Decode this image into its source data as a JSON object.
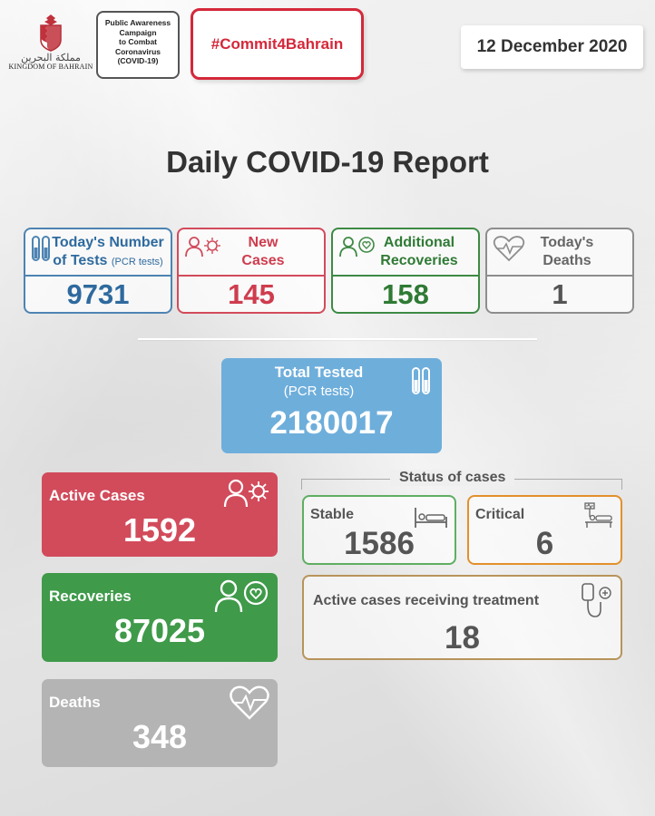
{
  "header": {
    "kingdom_ar": "مملكة البحرين",
    "kingdom_en": "KINGDOM OF BAHRAIN",
    "campaign_lines": [
      "Public Awareness",
      "Campaign",
      "to Combat",
      "Coronavirus",
      "(COVID-19)"
    ],
    "hashtag": "#Commit4Bahrain",
    "date": "12 December 2020"
  },
  "title": "Daily COVID-19 Report",
  "daily": {
    "tests": {
      "label_line1": "Today's Number",
      "label_line2": "of Tests",
      "label_small": "(PCR tests)",
      "value": "9731",
      "icon": "test-tubes-icon"
    },
    "new_cases": {
      "label_line1": "New",
      "label_line2": "Cases",
      "value": "145",
      "icon": "person-virus-icon"
    },
    "recoveries": {
      "label_line1": "Additional",
      "label_line2": "Recoveries",
      "value": "158",
      "icon": "person-heart-icon"
    },
    "deaths": {
      "label_line1": "Today's",
      "label_line2": "Deaths",
      "value": "1",
      "icon": "heart-pulse-icon"
    }
  },
  "total_tested": {
    "label": "Total Tested",
    "sublabel": "(PCR tests)",
    "value": "2180017",
    "icon": "test-tubes-icon"
  },
  "totals": {
    "active": {
      "label": "Active Cases",
      "value": "1592",
      "icon": "person-virus-icon"
    },
    "recoveries": {
      "label": "Recoveries",
      "value": "87025",
      "icon": "person-heart-icon"
    },
    "deaths": {
      "label": "Deaths",
      "value": "348",
      "icon": "heart-pulse-icon"
    }
  },
  "status": {
    "title": "Status of cases",
    "stable": {
      "label": "Stable",
      "value": "1586",
      "icon": "hospital-bed-icon"
    },
    "critical": {
      "label": "Critical",
      "value": "6",
      "icon": "icu-bed-icon"
    },
    "treatment": {
      "label": "Active cases receiving treatment",
      "value": "18",
      "icon": "iv-drip-icon"
    }
  },
  "colors": {
    "blue": "#4d84b2",
    "red": "#d24b5b",
    "green": "#3f9a4a",
    "gray": "#b4b4b4",
    "light_blue": "#6eaedb",
    "orange": "#e3902b",
    "brand_red": "#d4283a"
  }
}
